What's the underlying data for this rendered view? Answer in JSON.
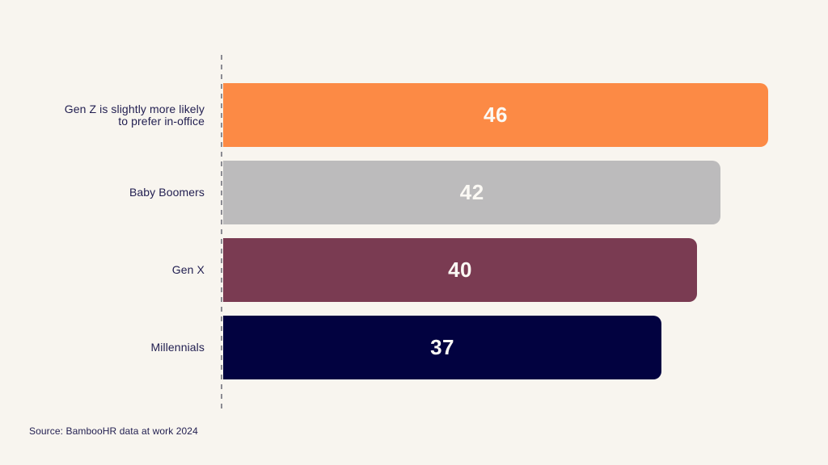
{
  "chart_data": {
    "type": "bar",
    "orientation": "horizontal",
    "title": "",
    "xlabel": "",
    "ylabel": "",
    "categories": [
      "Gen Z is slightly more likely to prefer in-office",
      "Baby Boomers",
      "Gen X",
      "Millennials"
    ],
    "values": [
      46,
      42,
      40,
      37
    ],
    "xlim": [
      0,
      46
    ],
    "grid": "off",
    "legend": "none",
    "value_labels": "white, centered inside bars",
    "axis_style": "dashed vertical baseline at left of bars",
    "source": "Source: BambooHR data at work 2024",
    "rows": [
      {
        "label_line1": "Gen Z is slightly more likely",
        "label_line2": "to prefer in-office",
        "value": 46,
        "color": "#FC8A45"
      },
      {
        "label_line1": "Baby Boomers",
        "label_line2": "",
        "value": 42,
        "color": "#BCBBBC"
      },
      {
        "label_line1": "Gen X",
        "label_line2": "",
        "value": 40,
        "color": "#7A3B52"
      },
      {
        "label_line1": "Millennials",
        "label_line2": "",
        "value": 37,
        "color": "#020240"
      }
    ]
  },
  "colors": {
    "background": "#F8F5EF",
    "label_text": "#211E50",
    "value_text": "#FBF9F4",
    "axis_dash": "#8C8C93",
    "bar_genz": "#FC8A45",
    "bar_babyboomers": "#BCBBBB",
    "bar_genx": "#7A3B52",
    "bar_millennials": "#020240"
  }
}
